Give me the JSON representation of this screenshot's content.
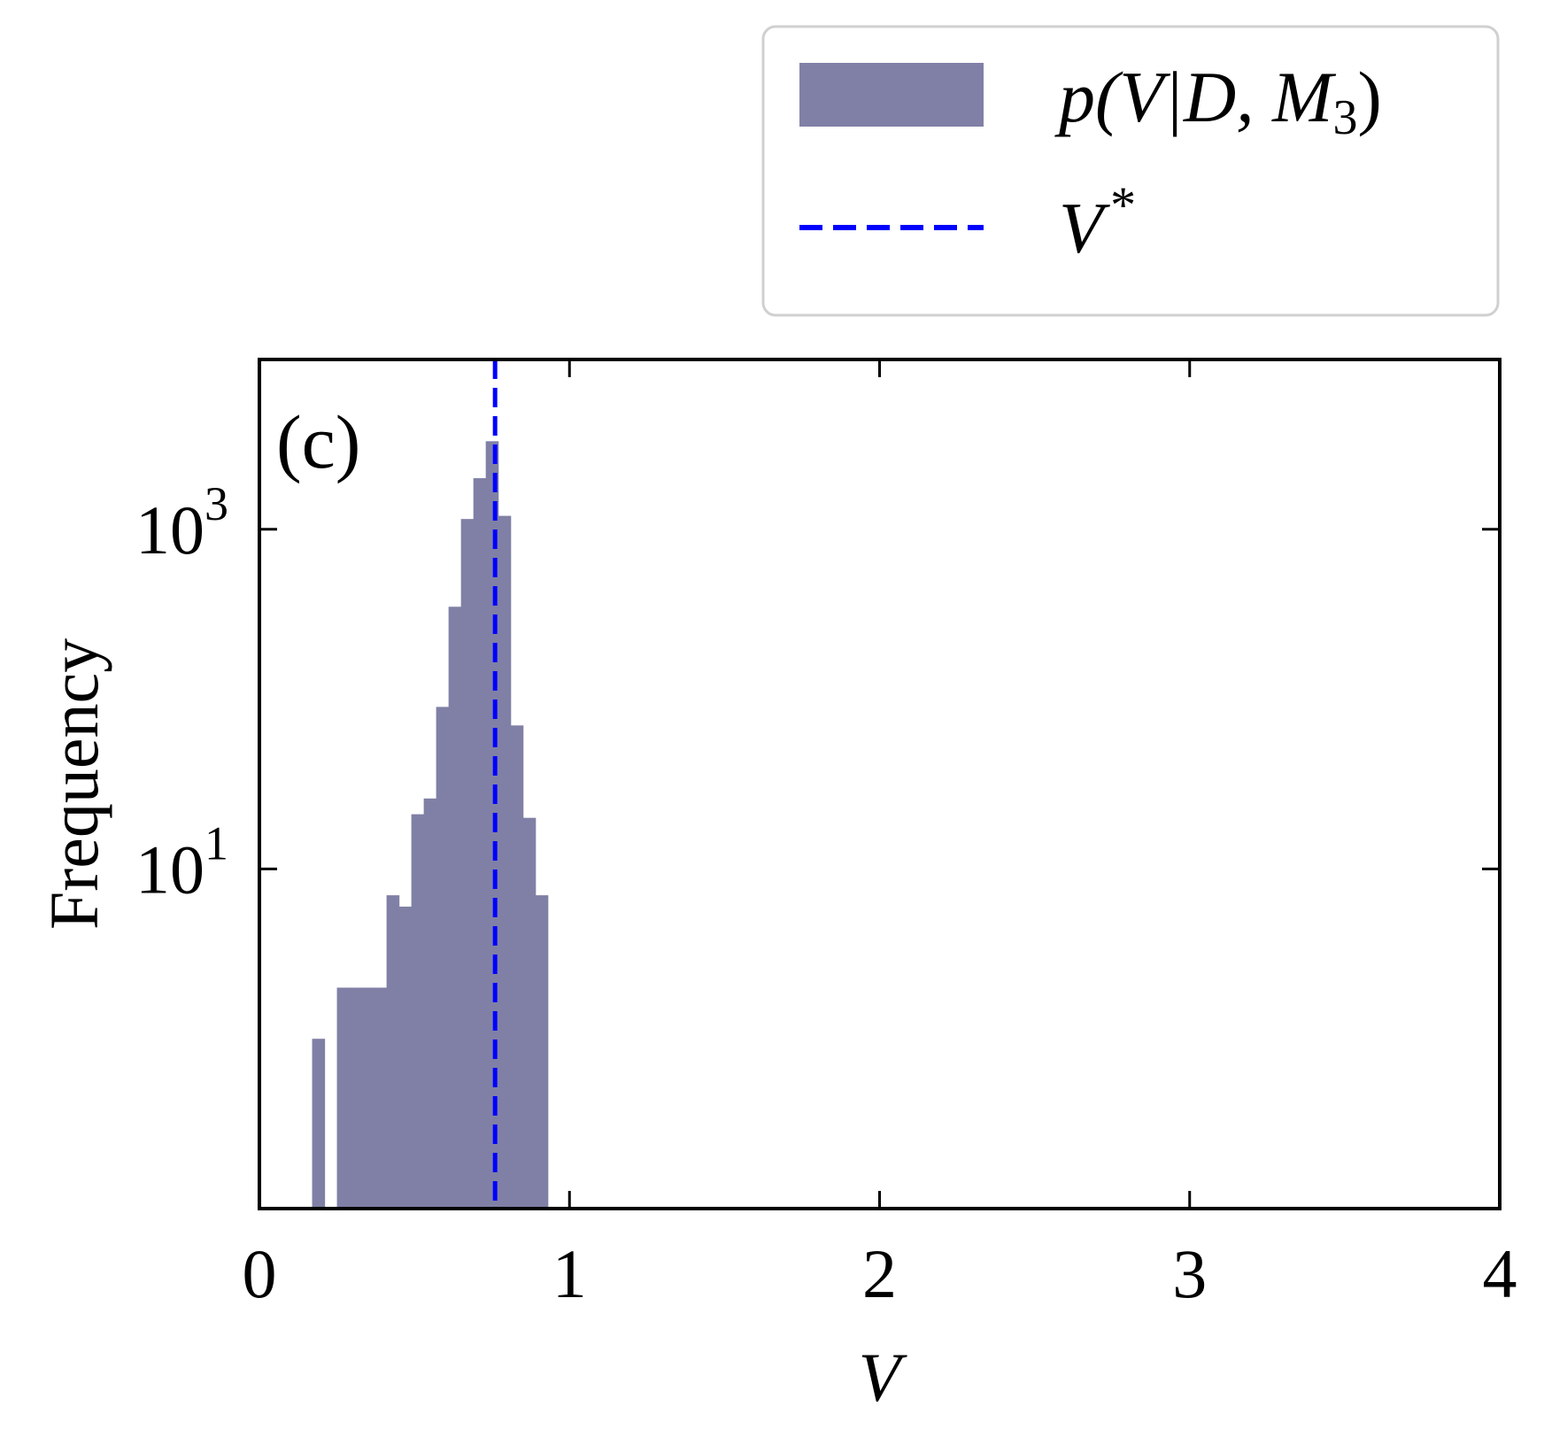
{
  "chart_data": {
    "type": "bar",
    "subtype": "histogram",
    "panel_label": "(c)",
    "title": "",
    "xlabel": "V",
    "ylabel": "Frequency",
    "xlim": [
      0,
      4
    ],
    "ylim": [
      0.1,
      10000
    ],
    "yscale": "log",
    "grid": false,
    "legend_position": "top-right, above plot",
    "x_ticks": [
      0,
      1,
      2,
      3,
      4
    ],
    "x_tick_labels": [
      "0",
      "1",
      "2",
      "3",
      "4"
    ],
    "y_ticks": [
      {
        "value": 1000,
        "base": "10",
        "exponent": "3"
      },
      {
        "value": 10,
        "base": "10",
        "exponent": "1"
      }
    ],
    "series": [
      {
        "name": "p(V|D, M3)",
        "legend_label": {
          "prefix": "p(V|D, M",
          "subscript": "3",
          "suffix": ")"
        },
        "kind": "histogram",
        "color": "#8080a6",
        "bin_width": 0.04,
        "bins": [
          {
            "x0": 0.17,
            "count": 1
          },
          {
            "x0": 0.25,
            "count": 2
          },
          {
            "x0": 0.29,
            "count": 2
          },
          {
            "x0": 0.33,
            "count": 2
          },
          {
            "x0": 0.37,
            "count": 2
          },
          {
            "x0": 0.41,
            "count": 7
          },
          {
            "x0": 0.45,
            "count": 6
          },
          {
            "x0": 0.49,
            "count": 21
          },
          {
            "x0": 0.53,
            "count": 26
          },
          {
            "x0": 0.57,
            "count": 90
          },
          {
            "x0": 0.61,
            "count": 350
          },
          {
            "x0": 0.65,
            "count": 1150
          },
          {
            "x0": 0.69,
            "count": 2000
          },
          {
            "x0": 0.73,
            "count": 3300
          },
          {
            "x0": 0.77,
            "count": 1200
          },
          {
            "x0": 0.81,
            "count": 70
          },
          {
            "x0": 0.85,
            "count": 20
          },
          {
            "x0": 0.89,
            "count": 7
          }
        ]
      },
      {
        "name": "V*",
        "legend_label": {
          "prefix": "V",
          "superscript": "*"
        },
        "kind": "vline",
        "x": 0.76,
        "color": "#0000ff",
        "style": "dashed"
      }
    ]
  }
}
